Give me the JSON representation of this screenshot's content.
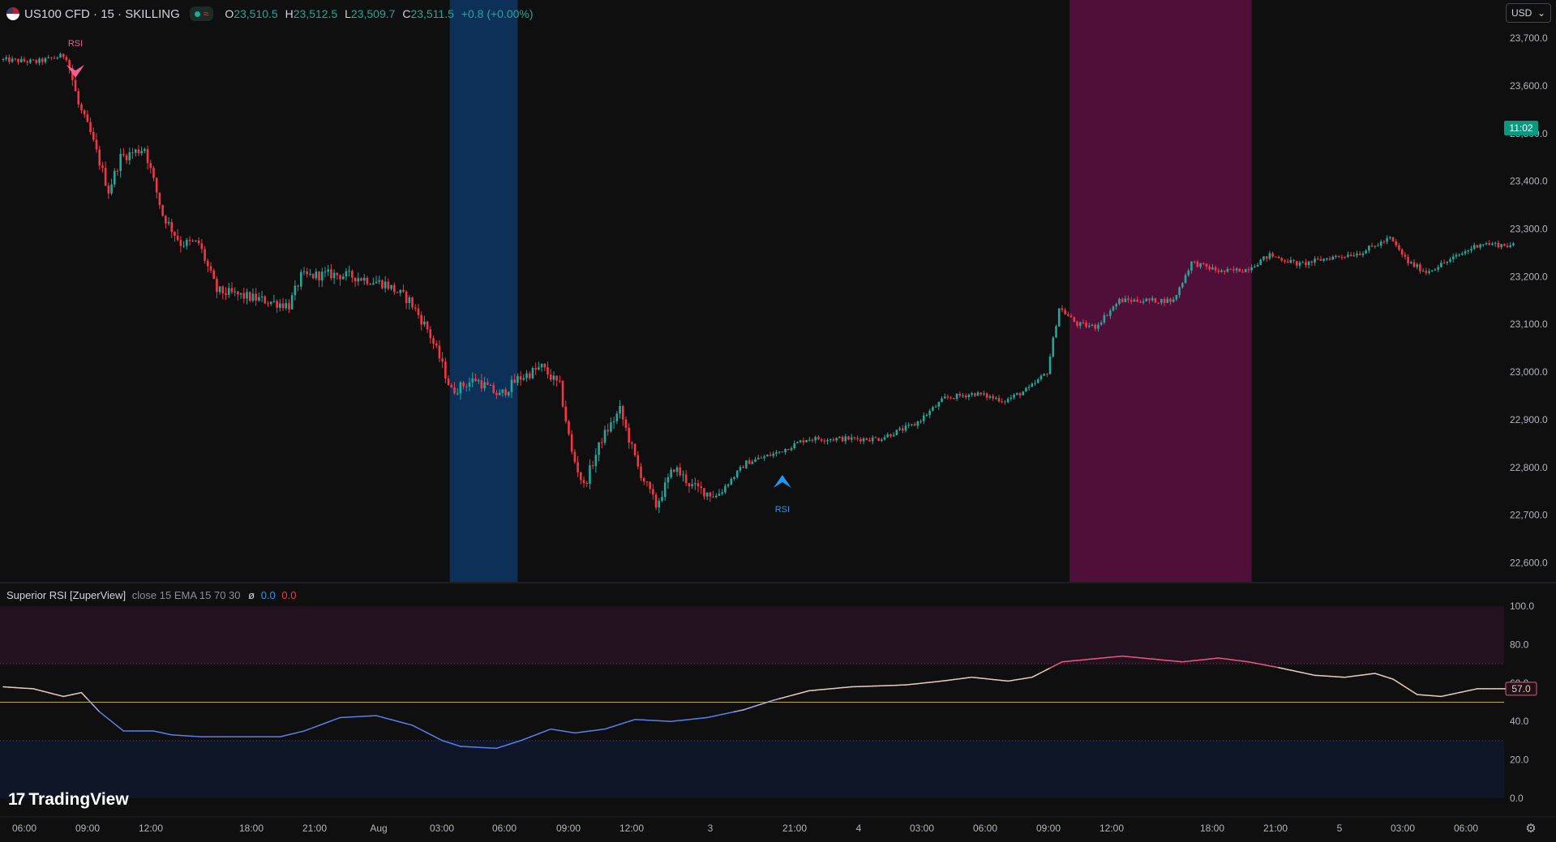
{
  "header": {
    "symbol": "US100 CFD · 15 · SKILLING",
    "status_wave": "≈",
    "open_key": "O",
    "open_val": "23,510.5",
    "high_key": "H",
    "high_val": "23,512.5",
    "low_key": "L",
    "low_val": "23,509.7",
    "close_key": "C",
    "close_val": "23,511.5",
    "change": "+0.8 (+0.00%)"
  },
  "currency": {
    "label": "USD",
    "chevron": "⌄"
  },
  "indicator": {
    "name": "Superior RSI [ZuperView]",
    "params": "close 15 EMA 15 70 30",
    "phi": "ø",
    "value1": "0.0",
    "value2": "0.0"
  },
  "brand": {
    "mark": "17",
    "name": "TradingView"
  },
  "icons": {
    "settings": "gear-icon",
    "flag": "us-flag-icon",
    "status": "market-status-icon"
  },
  "colors": {
    "background": "#0f0f0f",
    "up": "#26a69a",
    "down": "#f23645",
    "blue_zone": "#0c3058",
    "magenta_zone": "#4f0f38",
    "rsi_low": "#5b7de8",
    "rsi_mid": "#e8c9c0",
    "rsi_high": "#e8577e",
    "mid_line": "#b8a64a",
    "last_price_bg": "#089981"
  },
  "chart_data": [
    {
      "type": "candlestick",
      "title": "US100 CFD · 15 · SKILLING",
      "y_ticks": [
        "23,700.0",
        "23,600.0",
        "23,500.0",
        "23,400.0",
        "23,300.0",
        "23,200.0",
        "23,100.0",
        "23,000.0",
        "22,900.0",
        "22,800.0",
        "22,700.0",
        "22,600.0"
      ],
      "ylim": [
        22560,
        23780
      ],
      "x_ticks": [
        "06:00",
        "09:00",
        "12:00",
        "18:00",
        "21:00",
        "Aug",
        "03:00",
        "06:00",
        "09:00",
        "12:00",
        "3",
        "21:00",
        "4",
        "03:00",
        "06:00",
        "09:00",
        "12:00",
        "18:00",
        "21:00",
        "5",
        "03:00",
        "06:00"
      ],
      "last_price_label": "11:02",
      "markers": [
        {
          "label": "RSI",
          "direction": "down",
          "color": "#f06292",
          "candle_index": 24
        },
        {
          "label": "RSI",
          "direction": "up",
          "color": "#2196f3",
          "candle_index": 259
        }
      ],
      "highlight_zones": [
        {
          "from_index": 149,
          "to_index": 171,
          "color": "#0c3058"
        },
        {
          "from_index": 355,
          "to_index": 415,
          "color": "#4f0f38"
        }
      ],
      "anchors": [
        [
          0,
          23655
        ],
        [
          12,
          23650
        ],
        [
          22,
          23665
        ],
        [
          26,
          23560
        ],
        [
          30,
          23500
        ],
        [
          36,
          23380
        ],
        [
          40,
          23450
        ],
        [
          48,
          23470
        ],
        [
          54,
          23330
        ],
        [
          60,
          23270
        ],
        [
          66,
          23270
        ],
        [
          72,
          23170
        ],
        [
          80,
          23160
        ],
        [
          88,
          23150
        ],
        [
          96,
          23140
        ],
        [
          100,
          23200
        ],
        [
          110,
          23205
        ],
        [
          118,
          23200
        ],
        [
          128,
          23185
        ],
        [
          136,
          23150
        ],
        [
          142,
          23090
        ],
        [
          146,
          23030
        ],
        [
          150,
          22960
        ],
        [
          158,
          22985
        ],
        [
          166,
          22950
        ],
        [
          172,
          22985
        ],
        [
          180,
          23010
        ],
        [
          186,
          22970
        ],
        [
          190,
          22830
        ],
        [
          194,
          22760
        ],
        [
          200,
          22860
        ],
        [
          206,
          22920
        ],
        [
          212,
          22800
        ],
        [
          218,
          22720
        ],
        [
          224,
          22800
        ],
        [
          230,
          22760
        ],
        [
          238,
          22740
        ],
        [
          248,
          22810
        ],
        [
          258,
          22830
        ],
        [
          268,
          22860
        ],
        [
          280,
          22860
        ],
        [
          292,
          22860
        ],
        [
          304,
          22890
        ],
        [
          314,
          22945
        ],
        [
          324,
          22955
        ],
        [
          334,
          22940
        ],
        [
          342,
          22965
        ],
        [
          348,
          23000
        ],
        [
          352,
          23135
        ],
        [
          358,
          23100
        ],
        [
          364,
          23095
        ],
        [
          372,
          23150
        ],
        [
          382,
          23150
        ],
        [
          390,
          23150
        ],
        [
          396,
          23230
        ],
        [
          406,
          23210
        ],
        [
          414,
          23215
        ],
        [
          422,
          23245
        ],
        [
          432,
          23225
        ],
        [
          442,
          23240
        ],
        [
          452,
          23250
        ],
        [
          462,
          23280
        ],
        [
          468,
          23230
        ],
        [
          474,
          23210
        ],
        [
          482,
          23235
        ],
        [
          492,
          23270
        ],
        [
          502,
          23265
        ]
      ],
      "candle_count": 503
    },
    {
      "type": "line",
      "title": "Superior RSI [ZuperView]",
      "y_ticks": [
        "100.0",
        "80.0",
        "60.0",
        "40.0",
        "20.0",
        "0.0"
      ],
      "ylim": [
        0,
        100
      ],
      "levels": [
        70,
        50,
        30
      ],
      "last_value_label": "57.0",
      "series": [
        {
          "values": [
            [
              0,
              58
            ],
            [
              10,
              57
            ],
            [
              20,
              53
            ],
            [
              26,
              55
            ],
            [
              32,
              45
            ],
            [
              40,
              35
            ],
            [
              50,
              35
            ],
            [
              56,
              33
            ],
            [
              66,
              32
            ],
            [
              80,
              32
            ],
            [
              92,
              32
            ],
            [
              100,
              35
            ],
            [
              112,
              42
            ],
            [
              124,
              43
            ],
            [
              136,
              38
            ],
            [
              146,
              30
            ],
            [
              152,
              27
            ],
            [
              164,
              26
            ],
            [
              172,
              30
            ],
            [
              182,
              36
            ],
            [
              190,
              34
            ],
            [
              200,
              36
            ],
            [
              210,
              41
            ],
            [
              222,
              40
            ],
            [
              234,
              42
            ],
            [
              246,
              46
            ],
            [
              256,
              51
            ],
            [
              268,
              56
            ],
            [
              282,
              58
            ],
            [
              300,
              59
            ],
            [
              312,
              61
            ],
            [
              322,
              63
            ],
            [
              334,
              61
            ],
            [
              342,
              63
            ],
            [
              352,
              71
            ],
            [
              372,
              74
            ],
            [
              392,
              71
            ],
            [
              404,
              73
            ],
            [
              414,
              71
            ],
            [
              424,
              68
            ],
            [
              436,
              64
            ],
            [
              446,
              63
            ],
            [
              456,
              65
            ],
            [
              462,
              62
            ],
            [
              470,
              54
            ],
            [
              478,
              53
            ],
            [
              490,
              57
            ],
            [
              502,
              57
            ]
          ]
        }
      ]
    }
  ]
}
